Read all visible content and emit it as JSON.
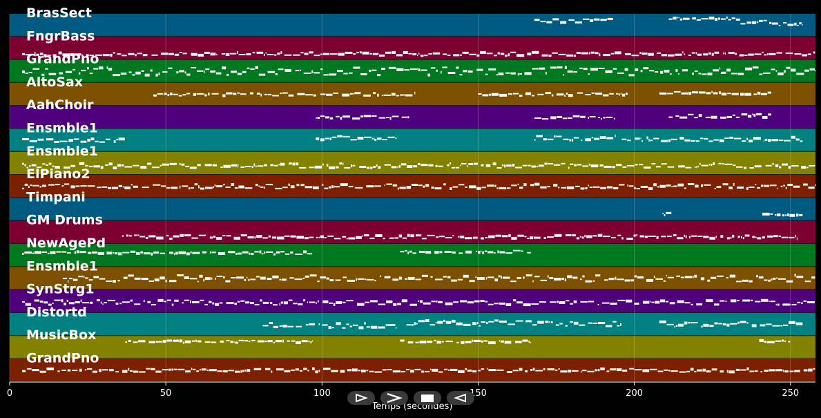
{
  "chart_data": {
    "type": "piano-roll",
    "title": "",
    "xlabel": "Temps (secondes)",
    "ylabel": "",
    "xlim": [
      0,
      258
    ],
    "x_ticks": [
      0,
      50,
      100,
      150,
      200,
      250
    ],
    "grid": true,
    "tracks": [
      {
        "name": "BrasSect",
        "color": "#005a82",
        "segments": [
          [
            168,
            194,
            0.3,
            0.4
          ],
          [
            211,
            234,
            0.2,
            0.3
          ],
          [
            234,
            244,
            0.35,
            0.45
          ],
          [
            244,
            254,
            0.45,
            0.3
          ]
        ]
      },
      {
        "name": "FngrBass",
        "color": "#7d0032",
        "segments": [
          [
            4,
            258,
            0.75,
            0.3
          ]
        ]
      },
      {
        "name": "GrandPno",
        "color": "#007820",
        "segments": [
          [
            4,
            258,
            0.5,
            0.7
          ]
        ]
      },
      {
        "name": "AltoSax",
        "color": "#7d5000",
        "segments": [
          [
            46,
            130,
            0.5,
            0.25
          ],
          [
            150,
            198,
            0.5,
            0.25
          ],
          [
            208,
            244,
            0.45,
            0.25
          ]
        ]
      },
      {
        "name": "AahChoir",
        "color": "#50007d",
        "segments": [
          [
            98,
            128,
            0.5,
            0.25
          ],
          [
            168,
            194,
            0.5,
            0.3
          ],
          [
            211,
            244,
            0.45,
            0.35
          ]
        ]
      },
      {
        "name": "Ensmble1",
        "color": "#008080",
        "segments": [
          [
            4,
            37,
            0.5,
            0.3
          ],
          [
            98,
            124,
            0.4,
            0.35
          ],
          [
            168,
            194,
            0.4,
            0.4
          ],
          [
            196,
            254,
            0.45,
            0.35
          ]
        ]
      },
      {
        "name": "Ensmble1",
        "color": "#828200",
        "segments": [
          [
            4,
            258,
            0.6,
            0.4
          ]
        ]
      },
      {
        "name": "ElPiano2",
        "color": "#7d2000",
        "segments": [
          [
            4,
            258,
            0.5,
            0.4
          ]
        ]
      },
      {
        "name": "Timpani",
        "color": "#005a82",
        "segments": [
          [
            209,
            212,
            0.7,
            0.3
          ],
          [
            241,
            254,
            0.75,
            0.25
          ]
        ]
      },
      {
        "name": "GM Drums",
        "color": "#7d0032",
        "segments": [
          [
            36,
            252,
            0.7,
            0.3
          ]
        ]
      },
      {
        "name": "NewAgePd",
        "color": "#007820",
        "segments": [
          [
            4,
            97,
            0.4,
            0.25
          ],
          [
            125,
            167,
            0.35,
            0.25
          ]
        ]
      },
      {
        "name": "Ensmble1",
        "color": "#7d5000",
        "segments": [
          [
            17,
            258,
            0.5,
            0.55
          ]
        ]
      },
      {
        "name": "SynStrg1",
        "color": "#50007d",
        "segments": [
          [
            4,
            258,
            0.55,
            0.4
          ]
        ]
      },
      {
        "name": "Distortd",
        "color": "#008080",
        "segments": [
          [
            81,
            124,
            0.55,
            0.45
          ],
          [
            127,
            196,
            0.45,
            0.5
          ],
          [
            208,
            254,
            0.5,
            0.5
          ]
        ]
      },
      {
        "name": "MusicBox",
        "color": "#828200",
        "segments": [
          [
            37,
            97,
            0.25,
            0.2
          ],
          [
            125,
            167,
            0.25,
            0.2
          ],
          [
            240,
            250,
            0.25,
            0.2
          ]
        ]
      },
      {
        "name": "GrandPno",
        "color": "#7d2000",
        "segments": [
          [
            4,
            258,
            0.5,
            0.3
          ]
        ]
      }
    ]
  }
}
